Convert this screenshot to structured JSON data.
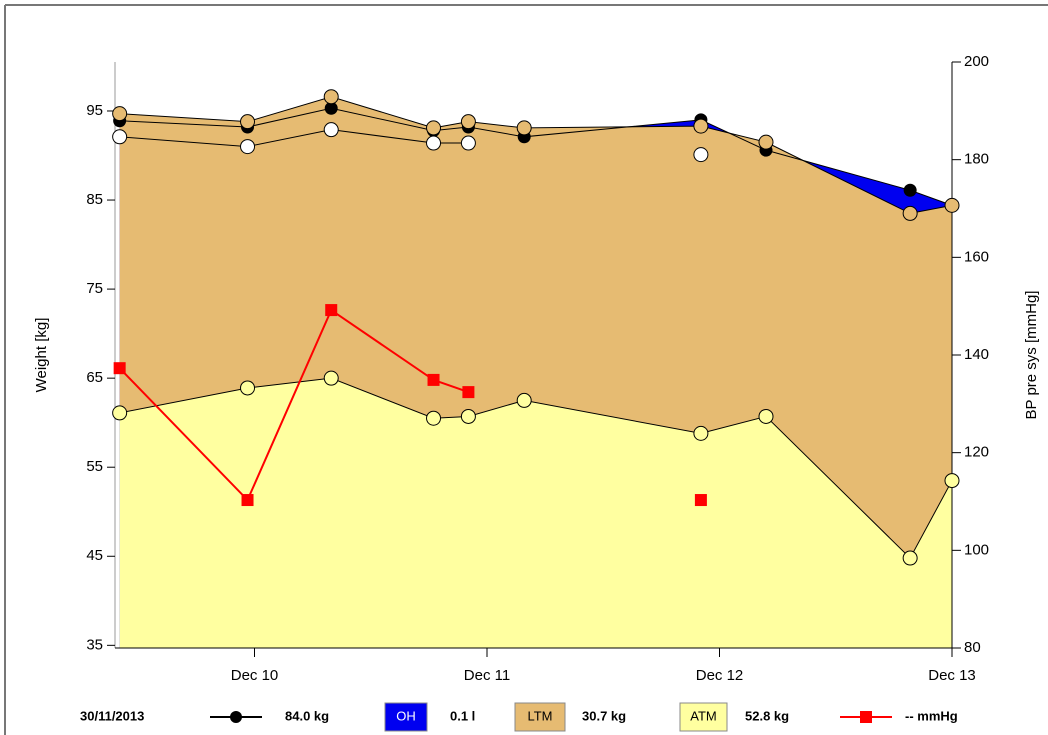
{
  "chart_data": {
    "type": "stacked-area",
    "y_label": "Weight [kg]",
    "y2_label": "BP pre sys [mmHg]",
    "date": "30/11/2013",
    "x": [
      9.42,
      9.97,
      10.33,
      10.77,
      10.92,
      11.16,
      11.92,
      12.2,
      12.82,
      13.0
    ],
    "xlim": [
      9.4,
      13.0
    ],
    "xticks": [
      {
        "value": 10,
        "label": "Dec 10"
      },
      {
        "value": 11,
        "label": "Dec 11"
      },
      {
        "value": 12,
        "label": "Dec 12"
      },
      {
        "value": 13,
        "label": "Dec 13"
      }
    ],
    "ylim": [
      34.7,
      100.5
    ],
    "yticks": [
      35,
      45,
      55,
      65,
      75,
      85,
      95
    ],
    "y2lim": [
      80,
      200
    ],
    "y2ticks": [
      80,
      100,
      120,
      140,
      160,
      180,
      200
    ],
    "series": [
      {
        "color": "#000000",
        "readout": "84.0 kg",
        "values": [
          93.9,
          93.2,
          95.3,
          92.8,
          93.2,
          92.1,
          94.0,
          90.6,
          86.1,
          84.4
        ]
      },
      {
        "name": "OH",
        "color": "#0000f0",
        "readout": "0.1 l"
      },
      {
        "name": "LTM",
        "color": "#e6bb72",
        "readout": "30.7 kg",
        "values": [
          33.6,
          29.9,
          31.6,
          32.6,
          33.1,
          30.6,
          34.5,
          30.8,
          38.7,
          30.9
        ]
      },
      {
        "name": "ATM",
        "color": "#ffffa0",
        "readout": "52.8 kg",
        "values": [
          61.1,
          63.9,
          65.0,
          60.5,
          60.7,
          62.5,
          58.8,
          60.7,
          44.8,
          53.5
        ]
      },
      {
        "color": "#ffffff",
        "values": [
          92.1,
          91.0,
          92.9,
          91.4,
          91.4,
          null,
          90.1,
          null,
          null,
          null
        ]
      },
      {
        "color": "#ff0000",
        "readout": "-- mmHg",
        "axis": "y2",
        "values": [
          137.3,
          110.3,
          149.2,
          134.9,
          132.4,
          null,
          110.3,
          null,
          null,
          null
        ]
      }
    ]
  }
}
